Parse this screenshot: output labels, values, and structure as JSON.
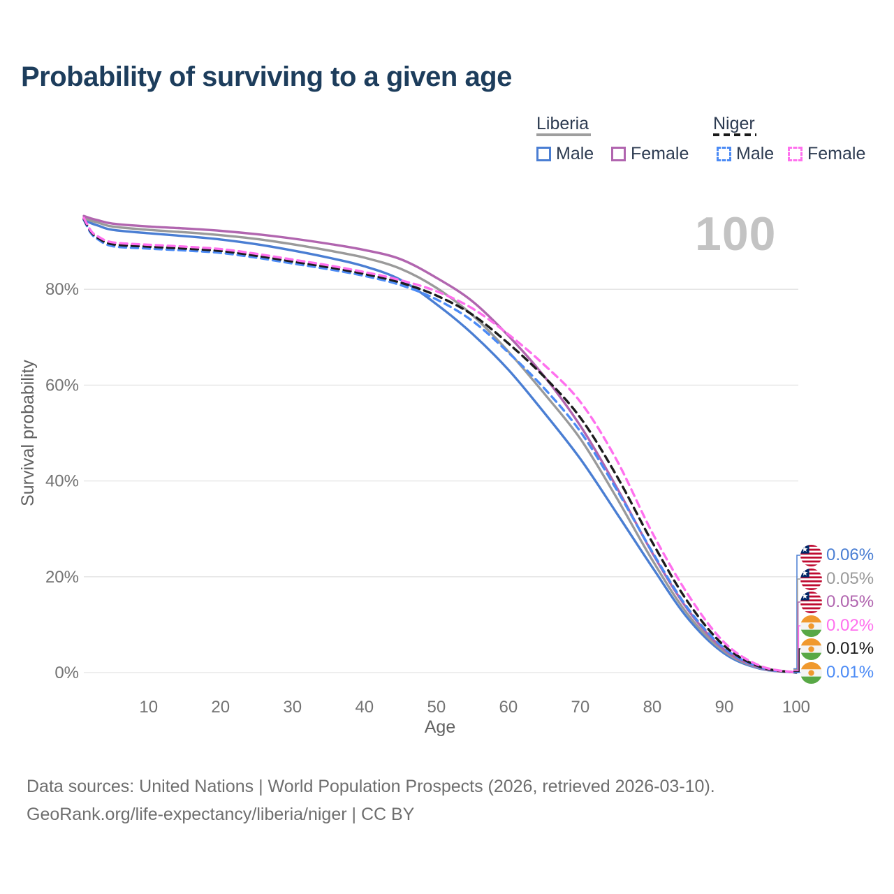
{
  "title": "Probability of surviving to a given age",
  "watermark": "100",
  "legend": {
    "groups": [
      {
        "label": "Liberia",
        "line_style": "solid",
        "underline_color": "#9e9e9e",
        "items": [
          {
            "label": "Male",
            "color": "#4a7ed3"
          },
          {
            "label": "Female",
            "color": "#b165af"
          }
        ]
      },
      {
        "label": "Niger",
        "line_style": "dashed",
        "underline_color": "#1a1a1a",
        "items": [
          {
            "label": "Male",
            "color": "#4c8bf5"
          },
          {
            "label": "Female",
            "color": "#ff70ee"
          }
        ]
      }
    ]
  },
  "chart_data": {
    "type": "line",
    "title": "Probability of surviving to a given age",
    "xlabel": "Age",
    "ylabel": "Survival probability",
    "xlim": [
      1,
      100
    ],
    "ylim": [
      0,
      100
    ],
    "grid": "horizontal",
    "x_ticks": [
      10,
      20,
      30,
      40,
      50,
      60,
      70,
      80,
      90,
      100
    ],
    "y_ticks": [
      {
        "value": 0,
        "label": "0%"
      },
      {
        "value": 20,
        "label": "20%"
      },
      {
        "value": 40,
        "label": "40%"
      },
      {
        "value": 60,
        "label": "60%"
      },
      {
        "value": 80,
        "label": "80%"
      }
    ],
    "x": [
      1,
      2,
      3,
      5,
      10,
      15,
      20,
      25,
      30,
      35,
      40,
      45,
      50,
      55,
      60,
      65,
      70,
      75,
      80,
      85,
      90,
      95,
      100
    ],
    "series": [
      {
        "name": "Liberia Male",
        "country": "Liberia",
        "sex": "Male",
        "color": "#4a7ed3",
        "dash": "solid",
        "values": [
          94.5,
          93.8,
          93.3,
          92.4,
          91.7,
          91.1,
          90.4,
          89.4,
          88.1,
          86.6,
          84.8,
          82.0,
          76.9,
          70.7,
          63.2,
          54.2,
          44.6,
          33.4,
          22.0,
          11.2,
          4.0,
          0.8,
          0.06
        ]
      },
      {
        "name": "Liberia",
        "country": "Liberia",
        "sex": "Both",
        "color": "#9a9a9a",
        "dash": "solid",
        "values": [
          94.9,
          94.3,
          93.9,
          93.1,
          92.4,
          91.9,
          91.3,
          90.5,
          89.4,
          88.1,
          86.6,
          84.3,
          80.3,
          74.6,
          67.0,
          58.2,
          48.8,
          36.6,
          23.5,
          12.0,
          4.4,
          0.9,
          0.05
        ]
      },
      {
        "name": "Liberia Female",
        "country": "Liberia",
        "sex": "Female",
        "color": "#b165af",
        "dash": "solid",
        "values": [
          95.3,
          94.8,
          94.4,
          93.7,
          93.1,
          92.7,
          92.2,
          91.5,
          90.6,
          89.5,
          88.2,
          86.3,
          82.4,
          77.5,
          70.3,
          61.8,
          51.5,
          38.8,
          25.0,
          13.0,
          4.8,
          1.0,
          0.05
        ]
      },
      {
        "name": "Niger Male",
        "country": "Niger",
        "sex": "Male",
        "color": "#4c8bf5",
        "dash": "dashed",
        "values": [
          94.5,
          91.7,
          90.4,
          89.0,
          88.5,
          88.1,
          87.6,
          86.6,
          85.4,
          84.2,
          82.8,
          80.9,
          77.9,
          73.4,
          66.8,
          59.3,
          50.3,
          38.3,
          25.2,
          13.3,
          5.1,
          1.1,
          0.01
        ]
      },
      {
        "name": "Niger",
        "country": "Niger",
        "sex": "Both",
        "color": "#1c1c1c",
        "dash": "dashed",
        "values": [
          94.7,
          92.0,
          90.7,
          89.4,
          88.9,
          88.5,
          88.0,
          87.0,
          85.8,
          84.6,
          83.2,
          81.4,
          78.7,
          74.7,
          68.7,
          61.7,
          53.2,
          41.2,
          27.2,
          14.6,
          5.6,
          1.2,
          0.01
        ]
      },
      {
        "name": "Niger Female",
        "country": "Niger",
        "sex": "Female",
        "color": "#ff70ee",
        "dash": "dashed",
        "values": [
          94.9,
          92.2,
          91.0,
          89.8,
          89.3,
          88.9,
          88.4,
          87.4,
          86.2,
          85.0,
          83.6,
          81.9,
          79.6,
          76.0,
          70.6,
          64.2,
          56.5,
          44.5,
          29.2,
          16.2,
          6.3,
          1.4,
          0.02
        ]
      }
    ]
  },
  "end_labels": [
    {
      "flag": "liberia",
      "series": "Liberia Male",
      "value": "0.06%",
      "color": "#4a7ed3"
    },
    {
      "flag": "liberia",
      "series": "Liberia",
      "value": "0.05%",
      "color": "#9a9a9a"
    },
    {
      "flag": "liberia",
      "series": "Liberia Female",
      "value": "0.05%",
      "color": "#b165af"
    },
    {
      "flag": "niger",
      "series": "Niger Female",
      "value": "0.02%",
      "color": "#ff70ee"
    },
    {
      "flag": "niger",
      "series": "Niger",
      "value": "0.01%",
      "color": "#1c1c1c"
    },
    {
      "flag": "niger",
      "series": "Niger Male",
      "value": "0.01%",
      "color": "#4c8bf5"
    }
  ],
  "footer": {
    "line1": "Data sources: United Nations | World Population Prospects (2026, retrieved 2026-03-10).",
    "line2": "GeoRank.org/life-expectancy/liberia/niger | CC BY"
  }
}
